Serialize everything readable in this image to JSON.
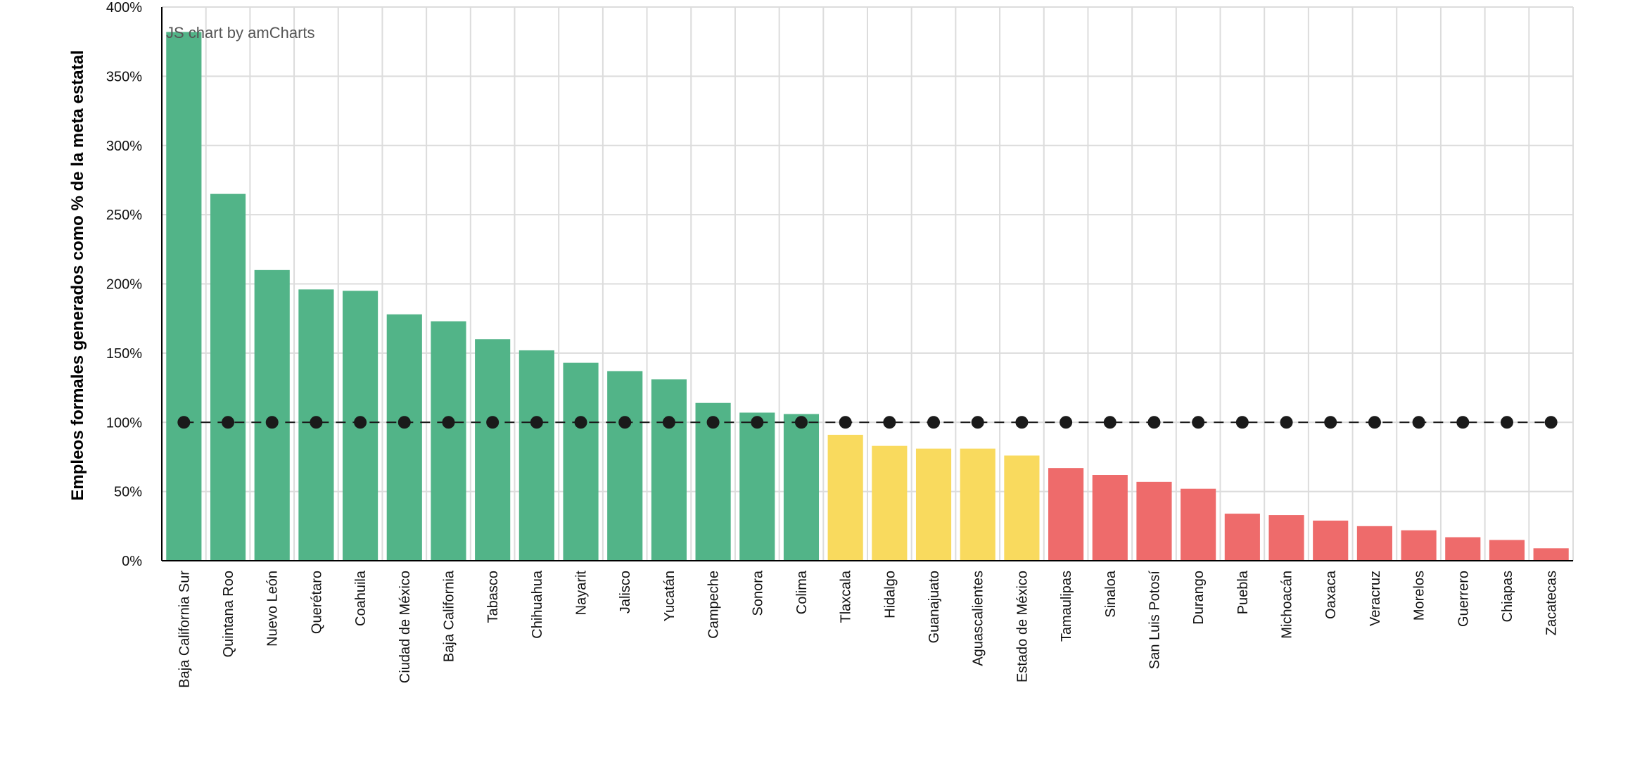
{
  "credit": "JS chart by amCharts",
  "chart_data": {
    "type": "bar",
    "title": "",
    "xlabel": "",
    "ylabel": "Empleos formales generados como % de la meta estatal",
    "ylim": [
      0,
      400
    ],
    "y_ticks": [
      0,
      50,
      100,
      150,
      200,
      250,
      300,
      350,
      400
    ],
    "y_tick_labels": [
      "0%",
      "50%",
      "100%",
      "150%",
      "200%",
      "250%",
      "300%",
      "350%",
      "400%"
    ],
    "grid": true,
    "categories": [
      "Baja California Sur",
      "Quintana Roo",
      "Nuevo León",
      "Querétaro",
      "Coahuila",
      "Ciudad de México",
      "Baja California",
      "Tabasco",
      "Chihuahua",
      "Nayarit",
      "Jalisco",
      "Yucatán",
      "Campeche",
      "Sonora",
      "Colima",
      "Tlaxcala",
      "Hidalgo",
      "Guanajuato",
      "Aguascalientes",
      "Estado de México",
      "Tamaulipas",
      "Sinaloa",
      "San Luis Potosí",
      "Durango",
      "Puebla",
      "Michoacán",
      "Oaxaca",
      "Veracruz",
      "Morelos",
      "Guerrero",
      "Chiapas",
      "Zacatecas"
    ],
    "values": [
      382,
      265,
      210,
      196,
      195,
      178,
      173,
      160,
      152,
      143,
      137,
      131,
      114,
      107,
      106,
      91,
      83,
      81,
      81,
      76,
      67,
      62,
      57,
      52,
      34,
      33,
      29,
      25,
      22,
      17,
      15,
      9
    ],
    "bar_color_groups": [
      "green",
      "green",
      "green",
      "green",
      "green",
      "green",
      "green",
      "green",
      "green",
      "green",
      "green",
      "green",
      "green",
      "green",
      "green",
      "yellow",
      "yellow",
      "yellow",
      "yellow",
      "yellow",
      "red",
      "red",
      "red",
      "red",
      "red",
      "red",
      "red",
      "red",
      "red",
      "red",
      "red",
      "red"
    ],
    "target_line": {
      "values": [
        100,
        100,
        100,
        100,
        100,
        100,
        100,
        100,
        100,
        100,
        100,
        100,
        100,
        100,
        100,
        100,
        100,
        100,
        100,
        100,
        100,
        100,
        100,
        100,
        100,
        100,
        100,
        100,
        100,
        100,
        100,
        100
      ],
      "style": "dashed",
      "marker": "circle",
      "color": "#1a1a1a"
    },
    "colors": {
      "green": "#52b488",
      "yellow": "#f9da5e",
      "red": "#ee6b6b"
    }
  }
}
